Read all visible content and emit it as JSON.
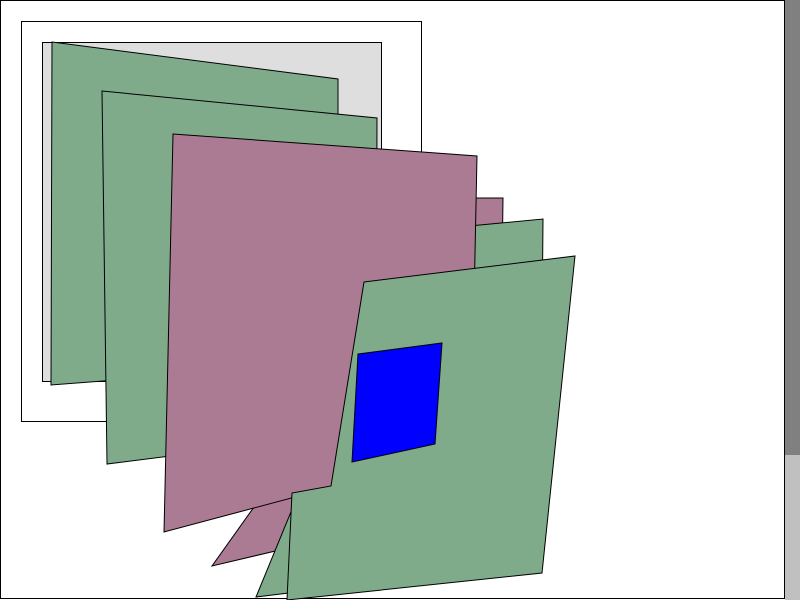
{
  "colors": {
    "background": "#ffffff",
    "frame_outer_fill": "#ffffff",
    "frame_inner_fill": "#dedede",
    "green_layer": "#80ab8b",
    "mauve_layer": "#aa7b93",
    "highlight_square": "#0000ff",
    "outline": "#000000",
    "scrollbar_track": "#c0c0c0",
    "scrollbar_thumb": "#808080"
  },
  "layers": [
    {
      "name": "green-layer-1",
      "color_key": "green_layer"
    },
    {
      "name": "green-layer-2",
      "color_key": "green_layer"
    },
    {
      "name": "mauve-layer-back",
      "color_key": "mauve_layer"
    },
    {
      "name": "green-layer-3",
      "color_key": "green_layer"
    },
    {
      "name": "mauve-layer-front",
      "color_key": "mauve_layer"
    },
    {
      "name": "green-layer-4",
      "color_key": "green_layer"
    },
    {
      "name": "blue-square",
      "color_key": "highlight_square"
    }
  ]
}
